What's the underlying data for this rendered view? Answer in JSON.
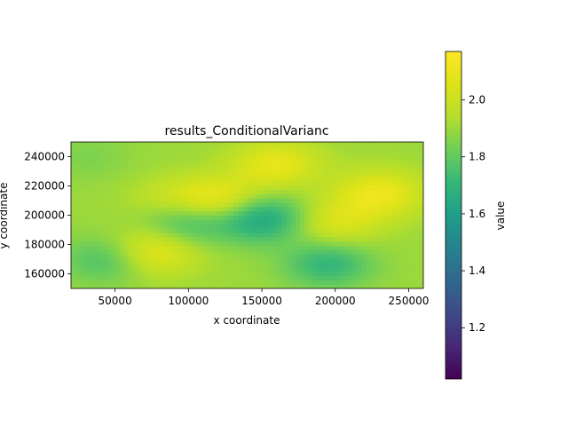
{
  "chart_data": {
    "type": "heatmap",
    "title": "results_ConditionalVarianc",
    "xlabel": "x coordinate",
    "ylabel": "y coordinate",
    "xlim": [
      20000,
      260000
    ],
    "ylim": [
      150000,
      250000
    ],
    "xticks": [
      50000,
      100000,
      150000,
      200000,
      250000
    ],
    "xtick_labels": [
      "50000",
      "100000",
      "150000",
      "200000",
      "250000"
    ],
    "yticks": [
      160000,
      180000,
      200000,
      220000,
      240000
    ],
    "ytick_labels": [
      "160000",
      "180000",
      "200000",
      "220000",
      "240000"
    ],
    "colormap": "viridis",
    "colorbar": {
      "label": "value",
      "range": [
        1.02,
        2.17
      ],
      "ticks": [
        1.2,
        1.4,
        1.6,
        1.8,
        2.0
      ],
      "tick_labels": [
        "1.2",
        "1.4",
        "1.6",
        "1.8",
        "2.0"
      ]
    },
    "field_features": [
      {
        "x": 120000,
        "y": 210000,
        "value": 2.12
      },
      {
        "x": 75000,
        "y": 175000,
        "value": 2.1
      },
      {
        "x": 160000,
        "y": 235000,
        "value": 2.09
      },
      {
        "x": 230000,
        "y": 215000,
        "value": 2.11
      },
      {
        "x": 200000,
        "y": 195000,
        "value": 2.05
      },
      {
        "x": 90000,
        "y": 210000,
        "value": 2.0
      },
      {
        "x": 150000,
        "y": 198000,
        "value": 1.62
      },
      {
        "x": 100000,
        "y": 197000,
        "value": 1.7
      },
      {
        "x": 195000,
        "y": 167000,
        "value": 1.7
      },
      {
        "x": 45000,
        "y": 170000,
        "value": 1.74
      },
      {
        "x": 30000,
        "y": 240000,
        "value": 1.85
      },
      {
        "x": 245000,
        "y": 165000,
        "value": 1.9
      }
    ],
    "base_value": 1.9
  }
}
